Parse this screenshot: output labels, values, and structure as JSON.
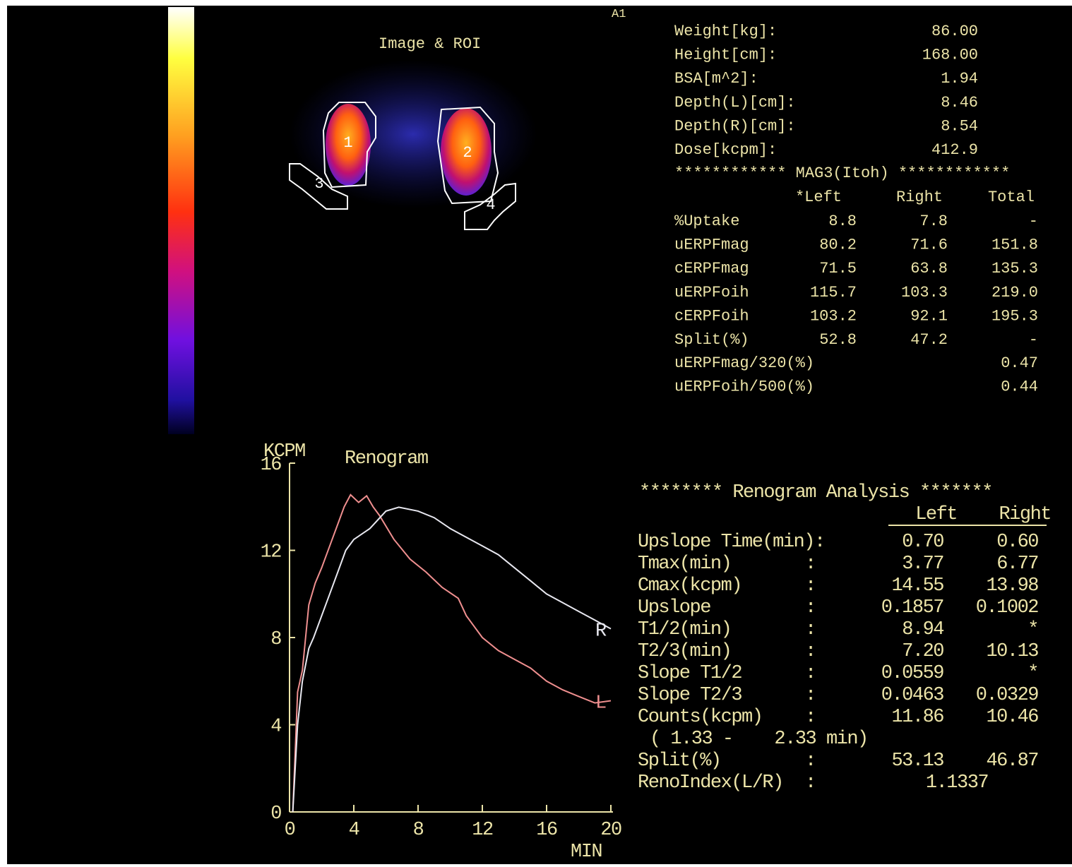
{
  "corner_label": "A1",
  "image": {
    "title": "Image & ROI",
    "roi_labels": [
      "1",
      "2",
      "3",
      "4"
    ]
  },
  "patient": {
    "rows": [
      [
        "Weight[kg]:",
        "86.00"
      ],
      [
        "Height[cm]:",
        "168.00"
      ],
      [
        "BSA[m^2]:",
        "1.94"
      ],
      [
        "Depth(L)[cm]:",
        "8.46"
      ],
      [
        "Depth(R)[cm]:",
        "8.54"
      ],
      [
        "Dose[kcpm]:",
        "412.9"
      ]
    ]
  },
  "mag3": {
    "header": "************ MAG3(Itoh) ************",
    "columns": [
      "*Left",
      "Right",
      "Total"
    ],
    "rows": [
      [
        "%Uptake",
        "8.8",
        "7.8",
        "-"
      ],
      [
        "uERPFmag",
        "80.2",
        "71.6",
        "151.8"
      ],
      [
        "cERPFmag",
        "71.5",
        "63.8",
        "135.3"
      ],
      [
        "uERPFoih",
        "115.7",
        "103.3",
        "219.0"
      ],
      [
        "cERPFoih",
        "103.2",
        "92.1",
        "195.3"
      ],
      [
        "Split(%)",
        "52.8",
        "47.2",
        "-"
      ]
    ],
    "ratios": [
      [
        "uERPFmag/320(%)",
        "0.47"
      ],
      [
        "uERPFoih/500(%)",
        "0.44"
      ]
    ]
  },
  "renogram": {
    "type": "line",
    "title": "Renogram",
    "y_label": "KCPM",
    "x_label": "MIN",
    "xlim": [
      0,
      20
    ],
    "xticks": [
      0,
      4,
      8,
      12,
      16,
      20
    ],
    "ylim": [
      0,
      16
    ],
    "yticks": [
      0,
      4,
      8,
      12,
      16
    ],
    "series": [
      {
        "name": "L",
        "color": "#ef8f8f",
        "x": [
          0.2,
          0.5,
          0.8,
          1.2,
          1.6,
          2.0,
          2.5,
          3.0,
          3.4,
          3.8,
          4.3,
          4.8,
          5.2,
          5.6,
          6.5,
          7.5,
          8.5,
          9.5,
          10.5,
          11.0,
          12.0,
          13.0,
          14.0,
          15.0,
          16.0,
          17.0,
          18.0,
          19.0,
          20.0
        ],
        "values": [
          0,
          5.5,
          6.5,
          9.5,
          10.5,
          11.2,
          12.2,
          13.2,
          14.0,
          14.55,
          14.2,
          14.5,
          14.0,
          13.6,
          12.5,
          11.6,
          11.0,
          10.3,
          9.8,
          9.0,
          8.0,
          7.4,
          7.0,
          6.6,
          6.0,
          5.6,
          5.3,
          5.0,
          5.1
        ]
      },
      {
        "name": "R",
        "color": "#e8e8f0",
        "x": [
          0.2,
          0.5,
          0.8,
          1.2,
          1.5,
          2.0,
          2.5,
          3.0,
          3.5,
          4.0,
          5.0,
          6.0,
          6.8,
          8.0,
          9.0,
          10.0,
          11.0,
          12.0,
          13.0,
          14.0,
          15.0,
          16.0,
          17.0,
          18.0,
          19.0,
          20.0
        ],
        "values": [
          0,
          4.0,
          6.0,
          7.5,
          8.0,
          9.0,
          10.0,
          11.0,
          12.0,
          12.5,
          13.0,
          13.8,
          13.98,
          13.8,
          13.5,
          13.0,
          12.6,
          12.2,
          11.8,
          11.2,
          10.6,
          10.0,
          9.6,
          9.2,
          8.8,
          8.4
        ]
      }
    ]
  },
  "analysis": {
    "header": "******** Renogram Analysis *******",
    "columns": [
      "Left",
      "Right"
    ],
    "rows": [
      {
        "label": "Upslope Time(min):",
        "left": "0.70",
        "right": "0.60"
      },
      {
        "label": "Tmax(min)",
        "sep": ":",
        "left": "3.77",
        "right": "6.77"
      },
      {
        "label": "Cmax(kcpm)",
        "sep": ":",
        "left": "14.55",
        "right": "13.98"
      },
      {
        "label": "Upslope",
        "sep": ":",
        "left": "0.1857",
        "right": "0.1002"
      },
      {
        "label": "T1/2(min)",
        "sep": ":",
        "left": "8.94",
        "right": "*"
      },
      {
        "label": "T2/3(min)",
        "sep": ":",
        "left": "7.20",
        "right": "10.13"
      },
      {
        "label": "Slope T1/2",
        "sep": ":",
        "left": "0.0559",
        "right": "*"
      },
      {
        "label": "Slope T2/3",
        "sep": ":",
        "left": "0.0463",
        "right": "0.0329"
      },
      {
        "label": "Counts(kcpm)",
        "sep": ":",
        "left": "11.86",
        "right": "10.46"
      }
    ],
    "counts_range": "( 1.33 -    2.33 min)",
    "split": {
      "label": "Split(%)",
      "sep": ":",
      "left": "53.13",
      "right": "46.87"
    },
    "reno_index": {
      "label": "RenoIndex(L/R)",
      "sep": ":",
      "value": "1.1337"
    }
  }
}
